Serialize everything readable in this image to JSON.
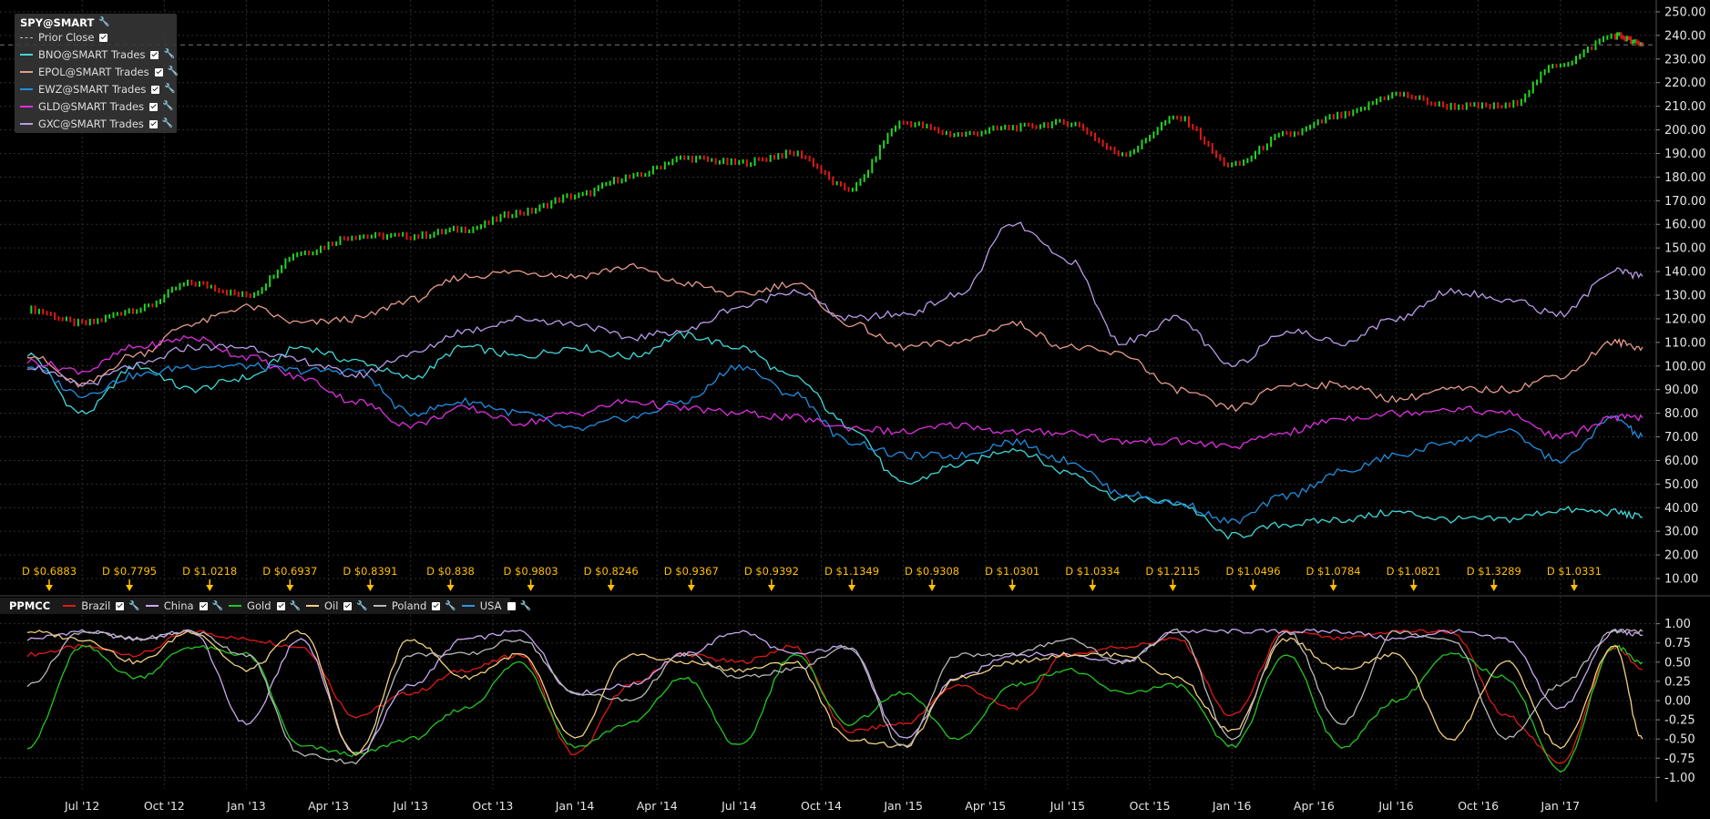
{
  "colors": {
    "background": "#000000",
    "grid": "#2e2e2e",
    "axis_text": "#e6e6e6",
    "dividend": "#ffbf00",
    "candle_up": "#22d622",
    "candle_down": "#e01818"
  },
  "main_legend": {
    "title": "SPY@SMART",
    "prior_close": "Prior Close",
    "items": [
      {
        "label": "BNO@SMART Trades",
        "color": "#3fd9d9"
      },
      {
        "label": "EPOL@SMART Trades",
        "color": "#e79b8a"
      },
      {
        "label": "EWZ@SMART Trades",
        "color": "#1f8ee0"
      },
      {
        "label": "GLD@SMART Trades",
        "color": "#e02ee0"
      },
      {
        "label": "GXC@SMART Trades",
        "color": "#b99be8"
      }
    ]
  },
  "sub_legend": {
    "title": "PPMCC",
    "items": [
      {
        "label": "Brazil",
        "color": "#e01818",
        "checked": true
      },
      {
        "label": "China",
        "color": "#c8a8f0",
        "checked": true
      },
      {
        "label": "Gold",
        "color": "#22c822",
        "checked": true
      },
      {
        "label": "Oil",
        "color": "#f0d080",
        "checked": true
      },
      {
        "label": "Poland",
        "color": "#b8b8b8",
        "checked": true
      },
      {
        "label": "USA",
        "color": "#2898e8",
        "checked": false
      }
    ]
  },
  "dividends": [
    "D $0.6883",
    "D $0.7795",
    "D $1.0218",
    "D $0.6937",
    "D $0.8391",
    "D $0.838",
    "D $0.9803",
    "D $0.8246",
    "D $0.9367",
    "D $0.9392",
    "D $1.1349",
    "D $0.9308",
    "D $1.0301",
    "D $1.0334",
    "D $1.2115",
    "D $1.0496",
    "D $1.0784",
    "D $1.0821",
    "D $1.3289",
    "D $1.0331"
  ],
  "chart_data": [
    {
      "type": "line",
      "panel": "price",
      "y_axis_side": "right",
      "ylim": [
        5,
        255
      ],
      "y_ticks": [
        "10.00",
        "20.00",
        "30.00",
        "40.00",
        "50.00",
        "60.00",
        "70.00",
        "80.00",
        "90.00",
        "100.00",
        "110.00",
        "120.00",
        "130.00",
        "140.00",
        "150.00",
        "160.00",
        "170.00",
        "180.00",
        "190.00",
        "200.00",
        "210.00",
        "220.00",
        "230.00",
        "240.00",
        "250.00"
      ],
      "prior_close": 236,
      "x_tick_labels": [
        "Jul '12",
        "Oct '12",
        "Jan '13",
        "Apr '13",
        "Jul '13",
        "Oct '13",
        "Jan '14",
        "Apr '14",
        "Jul '14",
        "Oct '14",
        "Jan '15",
        "Apr '15",
        "Jul '15",
        "Oct '15",
        "Jan '16",
        "Apr '16",
        "Jul '16",
        "Oct '16",
        "Jan '17"
      ],
      "x": [
        "2012-05",
        "2012-07",
        "2012-09",
        "2012-11",
        "2013-01",
        "2013-03",
        "2013-05",
        "2013-07",
        "2013-09",
        "2013-11",
        "2014-01",
        "2014-03",
        "2014-05",
        "2014-07",
        "2014-09",
        "2014-11",
        "2015-01",
        "2015-03",
        "2015-05",
        "2015-07",
        "2015-09",
        "2015-11",
        "2016-01",
        "2016-03",
        "2016-05",
        "2016-07",
        "2016-09",
        "2016-11",
        "2017-01",
        "2017-03",
        "2017-04"
      ],
      "series": [
        {
          "name": "SPY@SMART",
          "style": "candles",
          "values": [
            124,
            118,
            124,
            135,
            130,
            148,
            155,
            155,
            158,
            165,
            172,
            180,
            188,
            186,
            190,
            175,
            203,
            198,
            201,
            203,
            190,
            205,
            185,
            198,
            206,
            215,
            210,
            210,
            228,
            240,
            236
          ]
        },
        {
          "name": "BNO@SMART Trades",
          "values": [
            105,
            80,
            100,
            90,
            95,
            108,
            102,
            95,
            108,
            104,
            108,
            104,
            113,
            108,
            95,
            75,
            50,
            58,
            65,
            55,
            44,
            42,
            28,
            33,
            35,
            38,
            35,
            35,
            39,
            38,
            36
          ]
        },
        {
          "name": "EPOL@SMART Trades",
          "values": [
            105,
            92,
            105,
            118,
            125,
            118,
            120,
            128,
            138,
            140,
            138,
            142,
            135,
            130,
            135,
            118,
            108,
            110,
            118,
            108,
            105,
            90,
            82,
            92,
            92,
            86,
            90,
            90,
            96,
            110,
            108
          ]
        },
        {
          "name": "EWZ@SMART Trades",
          "values": [
            100,
            88,
            96,
            100,
            100,
            98,
            98,
            80,
            85,
            80,
            73,
            78,
            85,
            100,
            88,
            68,
            62,
            62,
            68,
            60,
            46,
            42,
            34,
            45,
            55,
            62,
            68,
            72,
            60,
            78,
            70
          ]
        },
        {
          "name": "GLD@SMART Trades",
          "values": [
            102,
            98,
            108,
            112,
            104,
            95,
            85,
            75,
            82,
            76,
            80,
            85,
            82,
            80,
            78,
            74,
            72,
            75,
            72,
            72,
            68,
            68,
            66,
            72,
            78,
            80,
            82,
            80,
            70,
            78,
            78
          ]
        },
        {
          "name": "GXC@SMART Trades",
          "values": [
            100,
            92,
            100,
            108,
            108,
            102,
            96,
            105,
            115,
            120,
            118,
            112,
            115,
            125,
            132,
            120,
            122,
            130,
            160,
            145,
            110,
            120,
            100,
            115,
            110,
            120,
            132,
            128,
            122,
            140,
            138
          ]
        }
      ]
    },
    {
      "type": "line",
      "panel": "PPMCC",
      "y_axis_side": "right",
      "ylim": [
        -1.15,
        1.15
      ],
      "y_ticks": [
        "-1.00",
        "-0.75",
        "-0.50",
        "-0.25",
        "0.00",
        "0.25",
        "0.50",
        "0.75",
        "1.00"
      ],
      "x": [
        "2012-05",
        "2012-07",
        "2012-09",
        "2012-11",
        "2013-01",
        "2013-03",
        "2013-05",
        "2013-07",
        "2013-09",
        "2013-11",
        "2014-01",
        "2014-03",
        "2014-05",
        "2014-07",
        "2014-09",
        "2014-11",
        "2015-01",
        "2015-03",
        "2015-05",
        "2015-07",
        "2015-09",
        "2015-11",
        "2016-01",
        "2016-03",
        "2016-05",
        "2016-07",
        "2016-09",
        "2016-11",
        "2017-01",
        "2017-03",
        "2017-04"
      ],
      "series": [
        {
          "name": "Brazil",
          "values": [
            0.6,
            0.7,
            0.6,
            0.9,
            0.8,
            0.7,
            -0.2,
            0.1,
            0.4,
            0.6,
            -0.7,
            0.2,
            0.6,
            0.5,
            0.7,
            -0.4,
            -0.3,
            0.2,
            -0.1,
            0.6,
            0.7,
            0.8,
            -0.2,
            0.9,
            0.8,
            0.9,
            0.9,
            -0.2,
            -0.8,
            0.7,
            0.4
          ]
        },
        {
          "name": "China",
          "values": [
            0.8,
            0.9,
            0.8,
            0.9,
            -0.3,
            0.8,
            -0.7,
            0.2,
            0.8,
            0.9,
            0.1,
            0.2,
            0.6,
            0.9,
            0.6,
            0.7,
            -0.5,
            0.3,
            0.6,
            0.6,
            0.5,
            0.9,
            0.9,
            0.9,
            0.9,
            0.8,
            0.9,
            0.8,
            -0.1,
            0.9,
            0.85
          ]
        },
        {
          "name": "Gold",
          "values": [
            -0.6,
            0.7,
            0.3,
            0.7,
            0.6,
            -0.6,
            -0.7,
            -0.5,
            -0.1,
            0.5,
            -0.6,
            -0.3,
            0.3,
            -0.6,
            0.6,
            -0.3,
            0.1,
            -0.5,
            0.2,
            0.4,
            0.1,
            0.2,
            -0.6,
            0.6,
            -0.6,
            0.0,
            0.6,
            0.3,
            -0.9,
            0.7,
            0.5
          ]
        },
        {
          "name": "Oil",
          "values": [
            0.9,
            0.8,
            0.5,
            0.9,
            0.4,
            0.9,
            -0.7,
            0.8,
            0.3,
            0.6,
            -0.5,
            0.6,
            0.5,
            0.4,
            0.5,
            -0.5,
            -0.6,
            0.3,
            0.5,
            0.6,
            0.6,
            0.3,
            -0.4,
            0.8,
            0.4,
            0.6,
            -0.5,
            0.5,
            -0.6,
            0.7,
            -0.5
          ]
        },
        {
          "name": "Poland",
          "values": [
            0.2,
            0.9,
            0.8,
            0.9,
            0.6,
            -0.7,
            -0.8,
            0.6,
            0.6,
            0.8,
            0.1,
            0.0,
            0.6,
            0.3,
            0.4,
            0.7,
            -0.6,
            0.6,
            0.6,
            0.8,
            0.5,
            0.9,
            -0.5,
            0.9,
            -0.3,
            0.9,
            0.8,
            -0.5,
            0.2,
            0.9,
            0.9
          ]
        }
      ]
    }
  ]
}
